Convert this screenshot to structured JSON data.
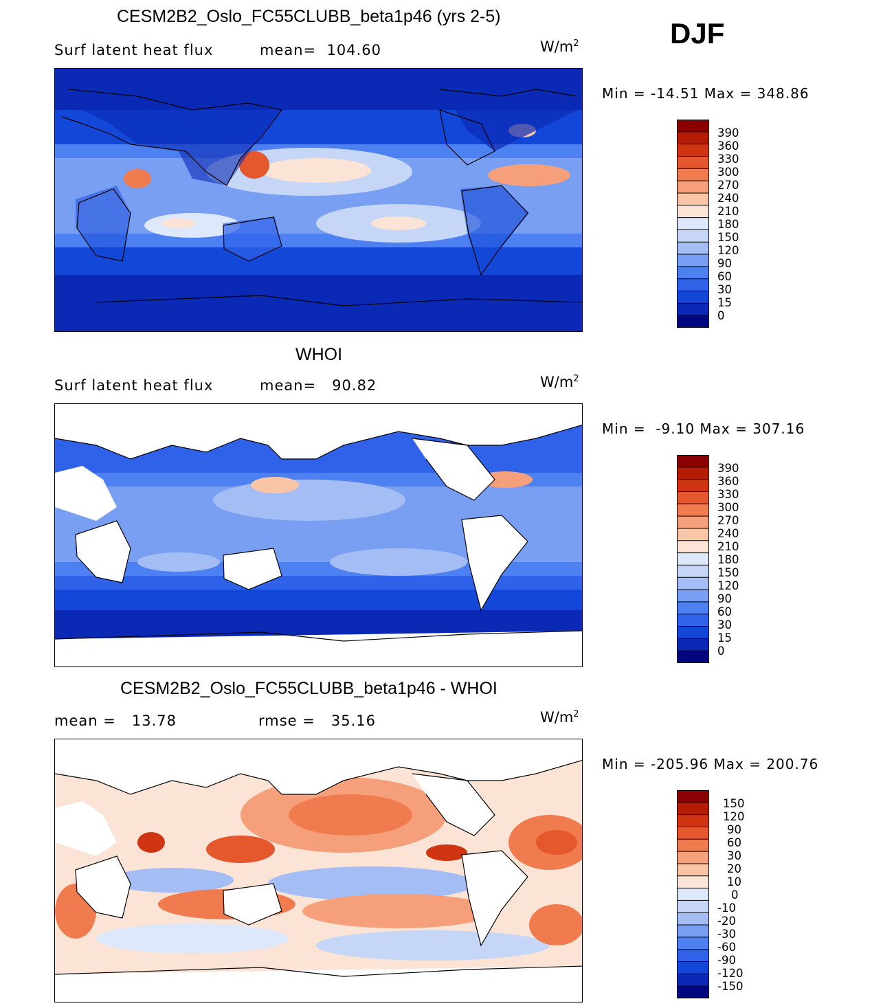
{
  "season_label": "DJF",
  "units": "W/m",
  "units_exp": "2",
  "panels": [
    {
      "id": "model",
      "title": "CESM2B2_Oslo_FC55CLUBB_beta1p46 (yrs 2-5)",
      "left_label": "Surf latent heat flux",
      "mid_label": "mean=  104.60",
      "min_max": "Min = -14.51 Max = 348.86",
      "colorbar_labels": [
        "390",
        "360",
        "330",
        "300",
        "270",
        "240",
        "210",
        "180",
        "150",
        "120",
        "90",
        "60",
        "30",
        "15",
        "0"
      ]
    },
    {
      "id": "obs",
      "title": "WHOI",
      "left_label": "Surf latent heat flux",
      "mid_label": "mean=   90.82",
      "min_max": "Min =  -9.10 Max = 307.16",
      "colorbar_labels": [
        "390",
        "360",
        "330",
        "300",
        "270",
        "240",
        "210",
        "180",
        "150",
        "120",
        "90",
        "60",
        "30",
        "15",
        "0"
      ]
    },
    {
      "id": "diff",
      "title": "CESM2B2_Oslo_FC55CLUBB_beta1p46 - WHOI",
      "left_label": "mean =   13.78",
      "mid_label": "rmse =   35.16",
      "min_max": "Min = -205.96 Max = 200.76",
      "colorbar_labels": [
        "150",
        "120",
        "90",
        "60",
        "30",
        "20",
        "10",
        "0",
        "-10",
        "-20",
        "-30",
        "-60",
        "-90",
        "-120",
        "-150"
      ]
    }
  ],
  "colors": {
    "palette": [
      "#00067d",
      "#0a29b5",
      "#1347d8",
      "#2f62e8",
      "#4d80f0",
      "#799ff3",
      "#a4bef5",
      "#c5d6f6",
      "#dde9fa",
      "#fbe4d6",
      "#f8c5a7",
      "#f5a07a",
      "#f07b4f",
      "#e5572c",
      "#cf3512",
      "#b41c05",
      "#8a0000"
    ]
  }
}
